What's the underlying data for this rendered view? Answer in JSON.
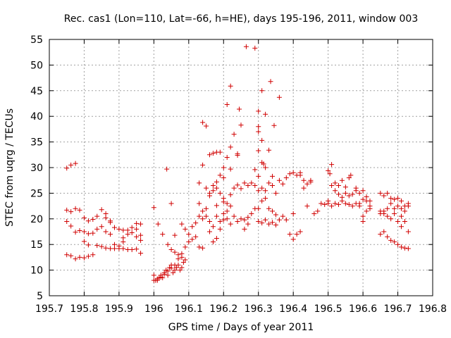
{
  "chart_data": {
    "type": "scatter",
    "title": "Rec. cas1 (Lon=110, Lat=-66, h=HE), days 195-196, 2011, window 003",
    "xlabel": "GPS time / Days of year 2011",
    "ylabel": "STEC from uqrg / TECUs",
    "xlim": [
      195.7,
      196.8
    ],
    "ylim": [
      5,
      55
    ],
    "x_ticks": [
      "195.7",
      "195.8",
      "195.9",
      "196",
      "196.1",
      "196.2",
      "196.3",
      "196.4",
      "196.5",
      "196.6",
      "196.7",
      "196.8"
    ],
    "y_ticks": [
      "5",
      "10",
      "15",
      "20",
      "25",
      "30",
      "35",
      "40",
      "45",
      "50",
      "55"
    ],
    "x_tick_values": [
      195.7,
      195.8,
      195.9,
      196.0,
      196.1,
      196.2,
      196.3,
      196.4,
      196.5,
      196.6,
      196.7,
      196.8
    ],
    "y_tick_values": [
      5,
      10,
      15,
      20,
      25,
      30,
      35,
      40,
      45,
      50,
      55
    ],
    "grid": true,
    "marker": "plus",
    "marker_color": "#d00000",
    "points": [
      [
        195.75,
        29.9
      ],
      [
        195.762,
        30.5
      ],
      [
        195.775,
        30.8
      ],
      [
        195.75,
        21.7
      ],
      [
        195.762,
        21.4
      ],
      [
        195.775,
        22.0
      ],
      [
        195.787,
        21.7
      ],
      [
        195.8,
        20.2
      ],
      [
        195.812,
        19.6
      ],
      [
        195.825,
        19.9
      ],
      [
        195.837,
        20.5
      ],
      [
        195.85,
        21.8
      ],
      [
        195.862,
        21.0
      ],
      [
        195.875,
        19.3
      ],
      [
        195.887,
        18.3
      ],
      [
        195.9,
        18.0
      ],
      [
        195.912,
        17.8
      ],
      [
        195.925,
        17.8
      ],
      [
        195.937,
        17.3
      ],
      [
        195.95,
        18.0
      ],
      [
        195.962,
        19.0
      ],
      [
        195.75,
        19.5
      ],
      [
        195.762,
        18.6
      ],
      [
        195.775,
        17.4
      ],
      [
        195.787,
        17.7
      ],
      [
        195.8,
        17.5
      ],
      [
        195.812,
        17.1
      ],
      [
        195.825,
        17.2
      ],
      [
        195.837,
        18.0
      ],
      [
        195.85,
        18.5
      ],
      [
        195.862,
        17.5
      ],
      [
        195.875,
        17.0
      ],
      [
        195.887,
        15.0
      ],
      [
        195.9,
        14.7
      ],
      [
        195.912,
        15.5
      ],
      [
        195.925,
        17.0
      ],
      [
        195.937,
        18.3
      ],
      [
        195.95,
        16.5
      ],
      [
        195.962,
        15.8
      ],
      [
        195.75,
        13.0
      ],
      [
        195.762,
        12.8
      ],
      [
        195.775,
        12.2
      ],
      [
        195.787,
        12.5
      ],
      [
        195.8,
        12.4
      ],
      [
        195.812,
        12.7
      ],
      [
        195.825,
        13.0
      ],
      [
        195.837,
        14.8
      ],
      [
        195.85,
        14.6
      ],
      [
        195.862,
        14.3
      ],
      [
        195.875,
        14.2
      ],
      [
        195.887,
        14.2
      ],
      [
        195.9,
        14.2
      ],
      [
        195.912,
        14.2
      ],
      [
        195.925,
        14.0
      ],
      [
        195.937,
        14.0
      ],
      [
        195.95,
        14.1
      ],
      [
        195.962,
        13.3
      ],
      [
        195.8,
        15.6
      ],
      [
        195.812,
        14.9
      ],
      [
        195.862,
        20.2
      ],
      [
        195.875,
        19.6
      ],
      [
        195.912,
        16.3
      ],
      [
        195.95,
        19.1
      ],
      [
        195.962,
        16.8
      ],
      [
        196.0,
        22.2
      ],
      [
        196.012,
        19.0
      ],
      [
        196.025,
        17.0
      ],
      [
        196.037,
        29.7
      ],
      [
        196.05,
        23.0
      ],
      [
        196.0,
        9.0
      ],
      [
        196.005,
        8.0
      ],
      [
        196.01,
        8.0
      ],
      [
        196.015,
        8.5
      ],
      [
        196.02,
        9.0
      ],
      [
        196.025,
        8.5
      ],
      [
        196.03,
        9.5
      ],
      [
        196.035,
        10.0
      ],
      [
        196.04,
        9.0
      ],
      [
        196.045,
        10.5
      ],
      [
        196.05,
        11.0
      ],
      [
        196.055,
        9.5
      ],
      [
        196.06,
        10.0
      ],
      [
        196.065,
        10.5
      ],
      [
        196.07,
        11.0
      ],
      [
        196.075,
        10.0
      ],
      [
        196.08,
        10.5
      ],
      [
        196.085,
        11.5
      ],
      [
        196.0,
        8.0
      ],
      [
        196.01,
        8.3
      ],
      [
        196.02,
        8.6
      ],
      [
        196.03,
        9.2
      ],
      [
        196.04,
        9.8
      ],
      [
        196.05,
        10.4
      ],
      [
        196.06,
        11.0
      ],
      [
        196.07,
        12.2
      ],
      [
        196.08,
        12.5
      ],
      [
        196.09,
        12.0
      ],
      [
        196.04,
        15.0
      ],
      [
        196.05,
        14.0
      ],
      [
        196.06,
        13.5
      ],
      [
        196.07,
        13.0
      ],
      [
        196.08,
        13.2
      ],
      [
        196.09,
        14.5
      ],
      [
        196.1,
        15.5
      ],
      [
        196.11,
        16.0
      ],
      [
        196.12,
        16.5
      ],
      [
        196.13,
        14.5
      ],
      [
        196.14,
        14.3
      ],
      [
        196.06,
        16.8
      ],
      [
        196.08,
        19.0
      ],
      [
        196.09,
        18.0
      ],
      [
        196.1,
        17.0
      ],
      [
        196.11,
        18.5
      ],
      [
        196.12,
        19.2
      ],
      [
        196.13,
        20.5
      ],
      [
        196.14,
        21.5
      ],
      [
        196.15,
        22.0
      ],
      [
        196.16,
        19.5
      ],
      [
        196.17,
        18.5
      ],
      [
        196.13,
        23.0
      ],
      [
        196.14,
        20.0
      ],
      [
        196.15,
        20.5
      ],
      [
        196.16,
        17.5
      ],
      [
        196.17,
        15.5
      ],
      [
        196.18,
        16.2
      ],
      [
        196.19,
        18.0
      ],
      [
        196.2,
        19.8
      ],
      [
        196.21,
        21.5
      ],
      [
        196.22,
        24.7
      ],
      [
        196.13,
        27.0
      ],
      [
        196.14,
        30.5
      ],
      [
        196.15,
        26.0
      ],
      [
        196.16,
        25.0
      ],
      [
        196.17,
        26.5
      ],
      [
        196.18,
        27.2
      ],
      [
        196.19,
        28.5
      ],
      [
        196.2,
        30.0
      ],
      [
        196.21,
        32.0
      ],
      [
        196.22,
        34.0
      ],
      [
        196.14,
        38.8
      ],
      [
        196.15,
        38.1
      ],
      [
        196.16,
        32.5
      ],
      [
        196.17,
        32.8
      ],
      [
        196.18,
        33.0
      ],
      [
        196.19,
        33.0
      ],
      [
        196.2,
        28.0
      ],
      [
        196.21,
        42.3
      ],
      [
        196.22,
        45.9
      ],
      [
        196.23,
        36.5
      ],
      [
        196.24,
        32.4
      ],
      [
        196.245,
        41.4
      ],
      [
        196.25,
        38.3
      ],
      [
        196.16,
        24.5
      ],
      [
        196.17,
        25.5
      ],
      [
        196.18,
        26.0
      ],
      [
        196.19,
        25.0
      ],
      [
        196.2,
        24.0
      ],
      [
        196.21,
        23.0
      ],
      [
        196.22,
        22.5
      ],
      [
        196.23,
        26.0
      ],
      [
        196.24,
        26.6
      ],
      [
        196.25,
        25.9
      ],
      [
        196.26,
        27.0
      ],
      [
        196.27,
        26.5
      ],
      [
        196.18,
        20.5
      ],
      [
        196.19,
        19.5
      ],
      [
        196.2,
        21.0
      ],
      [
        196.21,
        20.0
      ],
      [
        196.22,
        19.0
      ],
      [
        196.23,
        20.5
      ],
      [
        196.24,
        19.5
      ],
      [
        196.25,
        20.0
      ],
      [
        196.26,
        19.8
      ],
      [
        196.27,
        20.3
      ],
      [
        196.28,
        21.0
      ],
      [
        196.29,
        22.0
      ],
      [
        196.18,
        22.6
      ],
      [
        196.2,
        23.3
      ],
      [
        196.22,
        29.7
      ],
      [
        196.24,
        32.7
      ],
      [
        196.26,
        18.0
      ],
      [
        196.27,
        19.0
      ],
      [
        196.28,
        27.0
      ],
      [
        196.29,
        26.5
      ],
      [
        196.265,
        53.6
      ],
      [
        196.29,
        53.3
      ],
      [
        196.3,
        41.0
      ],
      [
        196.31,
        45.0
      ],
      [
        196.32,
        40.4
      ],
      [
        196.335,
        46.8
      ],
      [
        196.345,
        38.2
      ],
      [
        196.36,
        43.7
      ],
      [
        196.3,
        38.0
      ],
      [
        196.3,
        37.0
      ],
      [
        196.31,
        35.3
      ],
      [
        196.3,
        33.3
      ],
      [
        196.31,
        31.0
      ],
      [
        196.315,
        30.7
      ],
      [
        196.32,
        30.0
      ],
      [
        196.33,
        33.4
      ],
      [
        196.34,
        28.3
      ],
      [
        196.3,
        28.3
      ],
      [
        196.29,
        29.6
      ],
      [
        196.3,
        25.5
      ],
      [
        196.31,
        26.0
      ],
      [
        196.32,
        25.5
      ],
      [
        196.33,
        27.0
      ],
      [
        196.34,
        26.5
      ],
      [
        196.35,
        25.0
      ],
      [
        196.36,
        27.5
      ],
      [
        196.37,
        26.8
      ],
      [
        196.38,
        28.0
      ],
      [
        196.39,
        28.8
      ],
      [
        196.4,
        29.0
      ],
      [
        196.41,
        28.5
      ],
      [
        196.42,
        28.5
      ],
      [
        196.43,
        27.5
      ],
      [
        196.44,
        26.8
      ],
      [
        196.45,
        27.2
      ],
      [
        196.3,
        22.0
      ],
      [
        196.31,
        23.5
      ],
      [
        196.32,
        24.0
      ],
      [
        196.33,
        22.0
      ],
      [
        196.34,
        21.5
      ],
      [
        196.35,
        20.8
      ],
      [
        196.36,
        19.8
      ],
      [
        196.37,
        20.5
      ],
      [
        196.38,
        19.8
      ],
      [
        196.39,
        17.0
      ],
      [
        196.4,
        16.0
      ],
      [
        196.41,
        17.0
      ],
      [
        196.42,
        17.5
      ],
      [
        196.3,
        19.5
      ],
      [
        196.31,
        19.2
      ],
      [
        196.32,
        19.8
      ],
      [
        196.33,
        19.0
      ],
      [
        196.34,
        19.3
      ],
      [
        196.35,
        18.8
      ],
      [
        196.4,
        21.0
      ],
      [
        196.42,
        29.0
      ],
      [
        196.43,
        26.0
      ],
      [
        196.44,
        22.5
      ],
      [
        196.45,
        27.5
      ],
      [
        196.46,
        21.0
      ],
      [
        196.47,
        21.5
      ],
      [
        196.48,
        23.0
      ],
      [
        196.49,
        22.8
      ],
      [
        196.5,
        23.5
      ],
      [
        196.5,
        29.4
      ],
      [
        196.505,
        28.8
      ],
      [
        196.51,
        30.6
      ],
      [
        196.52,
        27.0
      ],
      [
        196.53,
        26.5
      ],
      [
        196.54,
        27.5
      ],
      [
        196.55,
        26.2
      ],
      [
        196.56,
        28.0
      ],
      [
        196.565,
        28.5
      ],
      [
        196.51,
        26.5
      ],
      [
        196.52,
        25.5
      ],
      [
        196.53,
        24.8
      ],
      [
        196.54,
        24.2
      ],
      [
        196.55,
        25.0
      ],
      [
        196.56,
        24.5
      ],
      [
        196.57,
        24.8
      ],
      [
        196.58,
        26.0
      ],
      [
        196.59,
        25.0
      ],
      [
        196.6,
        23.8
      ],
      [
        196.61,
        24.3
      ],
      [
        196.62,
        23.5
      ],
      [
        196.5,
        23.0
      ],
      [
        196.51,
        22.5
      ],
      [
        196.52,
        23.0
      ],
      [
        196.53,
        22.8
      ],
      [
        196.54,
        23.5
      ],
      [
        196.55,
        23.0
      ],
      [
        196.56,
        22.8
      ],
      [
        196.57,
        22.5
      ],
      [
        196.58,
        23.0
      ],
      [
        196.59,
        22.5
      ],
      [
        196.6,
        25.5
      ],
      [
        196.61,
        23.5
      ],
      [
        196.62,
        22.5
      ],
      [
        196.58,
        25.5
      ],
      [
        196.59,
        23.0
      ],
      [
        196.6,
        20.5
      ],
      [
        196.6,
        19.5
      ],
      [
        196.61,
        21.5
      ],
      [
        196.62,
        22.0
      ],
      [
        196.65,
        25.0
      ],
      [
        196.66,
        24.5
      ],
      [
        196.67,
        25.0
      ],
      [
        196.68,
        24.0
      ],
      [
        196.69,
        23.8
      ],
      [
        196.7,
        24.0
      ],
      [
        196.71,
        23.5
      ],
      [
        196.72,
        22.5
      ],
      [
        196.73,
        23.0
      ],
      [
        196.65,
        21.0
      ],
      [
        196.66,
        21.5
      ],
      [
        196.67,
        22.0
      ],
      [
        196.68,
        23.0
      ],
      [
        196.69,
        22.0
      ],
      [
        196.7,
        22.5
      ],
      [
        196.71,
        22.0
      ],
      [
        196.72,
        21.5
      ],
      [
        196.73,
        22.5
      ],
      [
        196.65,
        21.5
      ],
      [
        196.66,
        21.0
      ],
      [
        196.67,
        20.5
      ],
      [
        196.68,
        20.0
      ],
      [
        196.69,
        21.0
      ],
      [
        196.7,
        19.5
      ],
      [
        196.71,
        20.5
      ],
      [
        196.72,
        19.5
      ],
      [
        196.73,
        17.5
      ],
      [
        196.65,
        17.0
      ],
      [
        196.66,
        17.5
      ],
      [
        196.67,
        16.5
      ],
      [
        196.68,
        15.8
      ],
      [
        196.69,
        15.5
      ],
      [
        196.7,
        15.0
      ],
      [
        196.71,
        14.5
      ],
      [
        196.72,
        14.3
      ],
      [
        196.73,
        14.2
      ],
      [
        196.71,
        18.5
      ]
    ]
  }
}
